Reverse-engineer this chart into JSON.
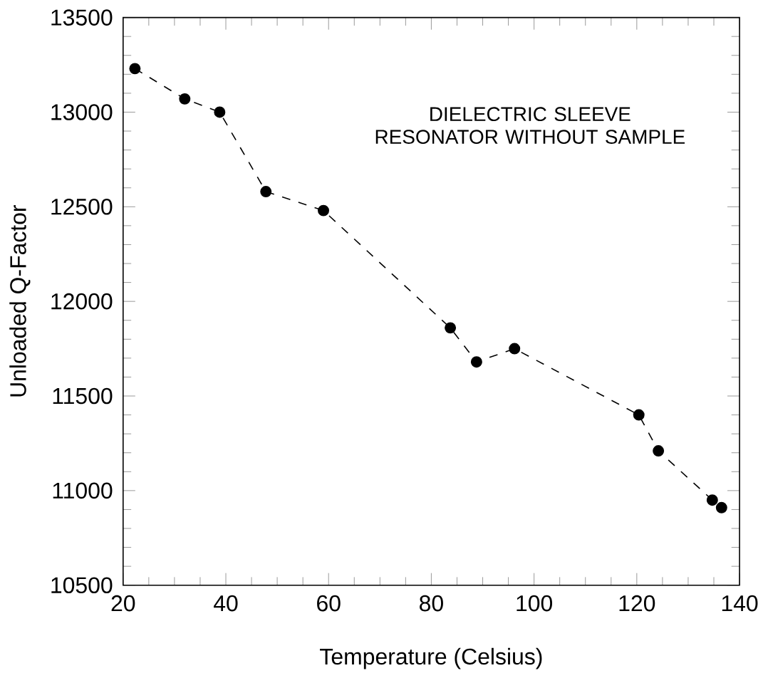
{
  "chart_data": {
    "type": "line",
    "xlabel": "Temperature (Celsius)",
    "ylabel": "Unloaded Q-Factor",
    "annotations": [
      "DIELECTRIC SLEEVE RESONATOR WITHOUT SAMPLE"
    ],
    "x": [
      22.3,
      32.0,
      38.8,
      47.8,
      59.0,
      83.7,
      88.8,
      96.2,
      120.4,
      124.2,
      134.7,
      136.5
    ],
    "series": [
      {
        "color": "#000000",
        "values": [
          13230,
          13070,
          13000,
          12580,
          12480,
          11860,
          11680,
          11750,
          11400,
          11210,
          10950,
          10910
        ]
      }
    ],
    "xlim": [
      20,
      140
    ],
    "ylim": [
      10500,
      13500
    ],
    "xticks": [
      20,
      40,
      60,
      80,
      100,
      120,
      140
    ],
    "yticks": [
      10500,
      11000,
      11500,
      12000,
      12500,
      13000,
      13500
    ],
    "marker": "circle",
    "line_style": "dashed",
    "grid": false
  }
}
